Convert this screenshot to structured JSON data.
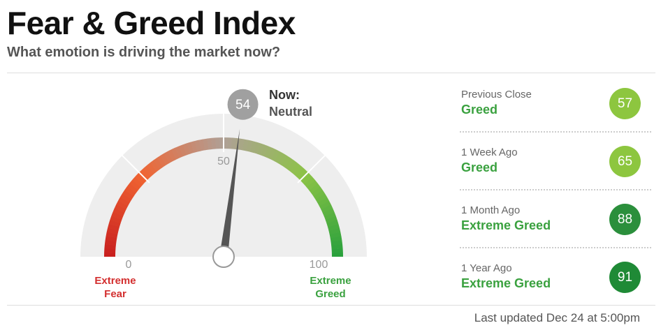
{
  "header": {
    "title": "Fear & Greed Index",
    "subtitle": "What emotion is driving the market now?"
  },
  "gauge": {
    "value": 54,
    "now_label": "Now:",
    "status": "Neutral",
    "range": [
      0,
      100
    ],
    "ticks": [
      0,
      50,
      100
    ],
    "end_labels": [
      "Extreme Fear",
      "Extreme Greed"
    ]
  },
  "history": [
    {
      "label": "Previous Close",
      "status": "Greed",
      "value": 57,
      "color": "#8dc63f"
    },
    {
      "label": "1 Week Ago",
      "status": "Greed",
      "value": 65,
      "color": "#8dc63f"
    },
    {
      "label": "1 Month Ago",
      "status": "Extreme Greed",
      "value": 88,
      "color": "#2b8f3c"
    },
    {
      "label": "1 Year Ago",
      "status": "Extreme Greed",
      "value": 91,
      "color": "#1f8a36"
    }
  ],
  "footer": "Last updated Dec 24 at 5:00pm"
}
